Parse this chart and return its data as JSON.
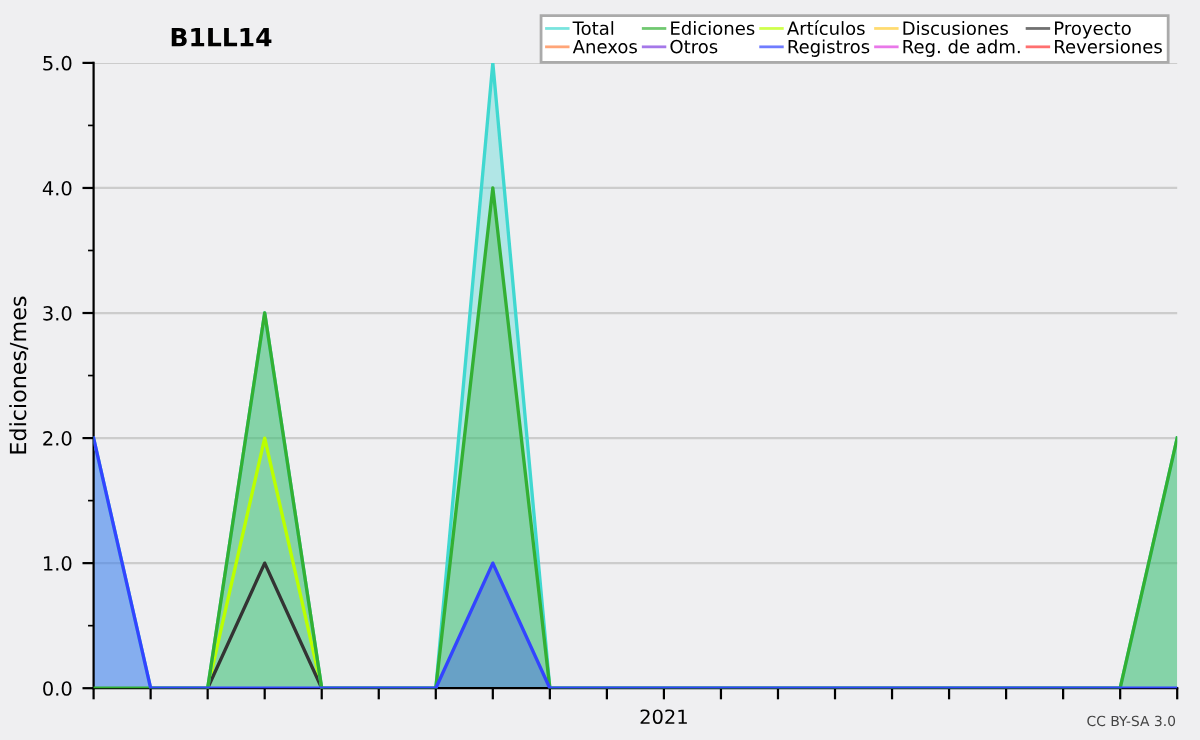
{
  "chart_data": {
    "type": "line",
    "title": "B1LL14",
    "ylabel": "Ediciones/mes",
    "categories": [
      null,
      null,
      null,
      null,
      null,
      null,
      null,
      null,
      null,
      null,
      "2021",
      null,
      null,
      null,
      null,
      null,
      null,
      null,
      null,
      null
    ],
    "ylim": [
      0,
      5
    ],
    "yticks": [
      {
        "value": 0,
        "label": "0.0"
      },
      {
        "value": 1,
        "label": "1.0"
      },
      {
        "value": 2,
        "label": "2.0"
      },
      {
        "value": 3,
        "label": "3.0"
      },
      {
        "value": 4,
        "label": "4.0"
      },
      {
        "value": 5,
        "label": "5.0"
      }
    ],
    "grid": "y",
    "legend": "top right",
    "annotations": [
      "CC BY-SA 3.0"
    ],
    "series": [
      {
        "name": "Total",
        "type": "area",
        "color": "#40d8d0",
        "values": [
          2,
          0,
          0,
          3,
          0,
          0,
          0,
          5,
          0,
          0,
          0,
          0,
          0,
          0,
          0,
          0,
          0,
          0,
          0,
          2
        ]
      },
      {
        "name": "Anexos",
        "color": "#ff7f3f",
        "values": [
          null,
          null,
          null,
          null,
          null,
          null,
          null,
          null,
          null,
          null,
          null,
          null,
          null,
          null,
          null,
          null,
          null,
          null,
          null,
          null
        ]
      },
      {
        "name": "Ediciones",
        "type": "area",
        "color": "#33b033",
        "values": [
          0,
          0,
          0,
          3,
          0,
          0,
          0,
          4,
          0,
          0,
          0,
          0,
          0,
          0,
          0,
          0,
          0,
          0,
          0,
          2
        ]
      },
      {
        "name": "Otros",
        "color": "#7f3fdf",
        "values": [
          null,
          null,
          null,
          null,
          null,
          null,
          null,
          null,
          null,
          null,
          null,
          null,
          null,
          null,
          null,
          null,
          null,
          null,
          null,
          null
        ]
      },
      {
        "name": "Artículos",
        "color": "#bbff00",
        "values": [
          null,
          null,
          0,
          2,
          0,
          null,
          null,
          null,
          null,
          null,
          null,
          null,
          null,
          null,
          null,
          null,
          null,
          null,
          null,
          null
        ]
      },
      {
        "name": "Registros",
        "type": "area",
        "color": "#3344ff",
        "values": [
          2,
          0,
          0,
          0,
          0,
          0,
          0,
          1,
          0,
          0,
          0,
          0,
          0,
          0,
          0,
          0,
          0,
          0,
          0,
          0
        ]
      },
      {
        "name": "Discusiones",
        "color": "#ffcc33",
        "values": [
          null,
          null,
          null,
          null,
          null,
          null,
          null,
          null,
          null,
          null,
          null,
          null,
          null,
          null,
          null,
          null,
          null,
          null,
          null,
          null
        ]
      },
      {
        "name": "Reg. de adm.",
        "color": "#df3fdf",
        "values": [
          null,
          null,
          null,
          null,
          null,
          null,
          null,
          null,
          null,
          null,
          null,
          null,
          null,
          null,
          null,
          null,
          null,
          null,
          null,
          null
        ]
      },
      {
        "name": "Proyecto",
        "color": "#333333",
        "values": [
          null,
          null,
          0,
          1,
          0,
          null,
          null,
          null,
          null,
          null,
          null,
          null,
          null,
          null,
          null,
          null,
          null,
          null,
          null,
          null
        ]
      },
      {
        "name": "Reversiones",
        "color": "#ff3333",
        "values": [
          null,
          null,
          null,
          null,
          null,
          null,
          null,
          null,
          null,
          null,
          null,
          null,
          null,
          null,
          null,
          null,
          null,
          null,
          null,
          null
        ]
      }
    ]
  }
}
